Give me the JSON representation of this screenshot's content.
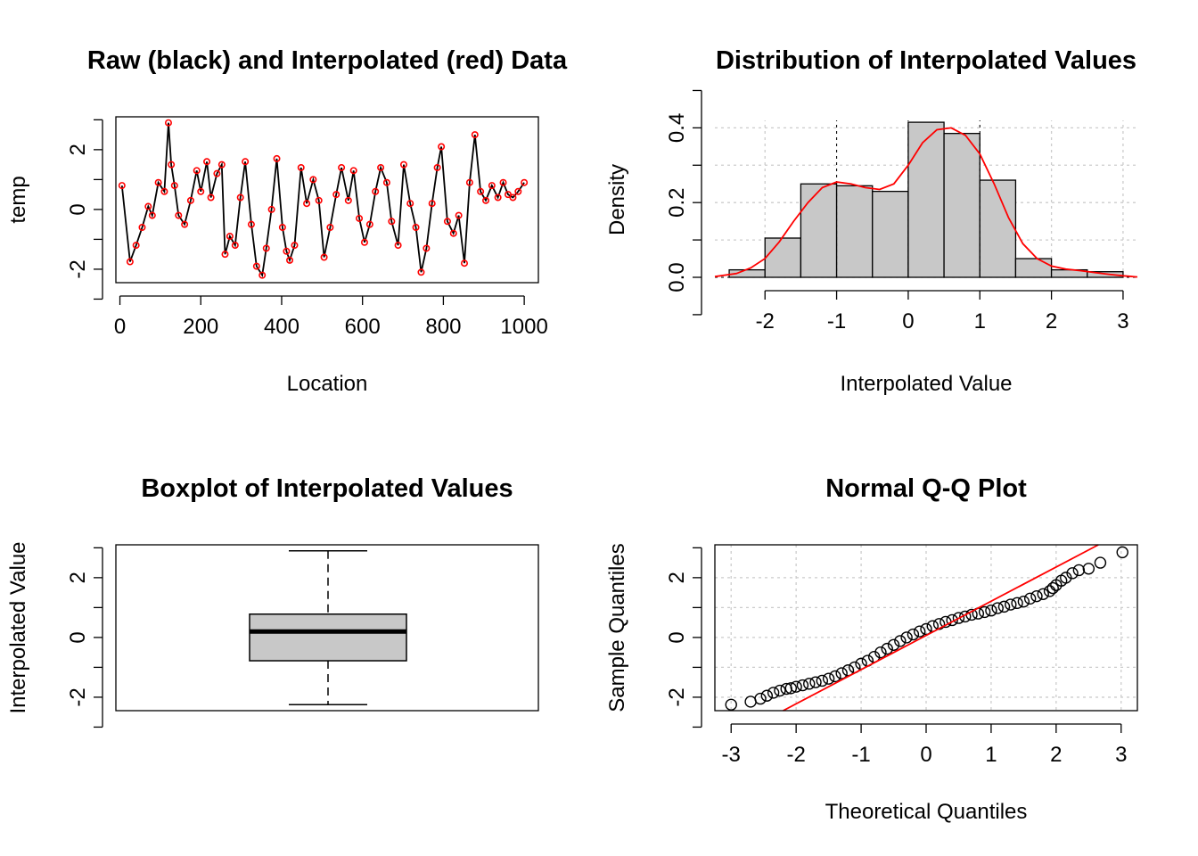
{
  "chart_data": [
    {
      "type": "line",
      "title": "Raw (black) and Interpolated (red) Data",
      "xlabel": "Location",
      "ylabel": "temp",
      "xlim": [
        -10,
        1035
      ],
      "ylim": [
        -2.45,
        3.1
      ],
      "xticks": [
        "0",
        "200",
        "400",
        "600",
        "800",
        "1000"
      ],
      "yticks": [
        "-2",
        "0",
        "2"
      ],
      "series": [
        {
          "name": "raw",
          "color": "#000000",
          "x": [
            5,
            25,
            40,
            55,
            70,
            80,
            95,
            110,
            120,
            127,
            135,
            145,
            160,
            175,
            190,
            200,
            215,
            225,
            240,
            252,
            260,
            272,
            285,
            298,
            310,
            325,
            338,
            352,
            362,
            375,
            388,
            402,
            412,
            420,
            432,
            448,
            462,
            478,
            492,
            505,
            520,
            535,
            548,
            565,
            578,
            592,
            605,
            618,
            632,
            645,
            660,
            672,
            688,
            702,
            718,
            732,
            745,
            758,
            772,
            785,
            795,
            810,
            825,
            838,
            852,
            865,
            878,
            892,
            905,
            920,
            935,
            948,
            960,
            972,
            985,
            1000
          ],
          "y": [
            0.8,
            -1.75,
            -1.2,
            -0.6,
            0.1,
            -0.2,
            0.9,
            0.6,
            2.9,
            1.5,
            0.8,
            -0.2,
            -0.5,
            0.3,
            1.3,
            0.6,
            1.6,
            0.4,
            1.2,
            1.5,
            -1.5,
            -0.9,
            -1.2,
            0.4,
            1.6,
            -0.5,
            -1.9,
            -2.2,
            -1.3,
            0.0,
            1.7,
            -0.6,
            -1.4,
            -1.7,
            -1.2,
            1.4,
            0.2,
            1.0,
            0.3,
            -1.6,
            -0.6,
            0.5,
            1.4,
            0.3,
            1.3,
            -0.3,
            -1.1,
            -0.5,
            0.6,
            1.4,
            0.9,
            -0.4,
            -1.2,
            1.5,
            0.2,
            -0.6,
            -2.1,
            -1.3,
            0.2,
            1.4,
            2.1,
            -0.4,
            -0.8,
            -0.2,
            -1.8,
            0.9,
            2.5,
            0.6,
            0.3,
            0.8,
            0.4,
            0.9,
            0.5,
            0.4,
            0.6,
            0.9
          ]
        },
        {
          "name": "interpolated",
          "color": "#ff0000",
          "x": [
            5,
            25,
            40,
            55,
            70,
            80,
            95,
            110,
            120,
            127,
            135,
            145,
            160,
            175,
            190,
            200,
            215,
            225,
            240,
            252,
            260,
            272,
            285,
            298,
            310,
            325,
            338,
            352,
            362,
            375,
            388,
            402,
            412,
            420,
            432,
            448,
            462,
            478,
            492,
            505,
            520,
            535,
            548,
            565,
            578,
            592,
            605,
            618,
            632,
            645,
            660,
            672,
            688,
            702,
            718,
            732,
            745,
            758,
            772,
            785,
            795,
            810,
            825,
            838,
            852,
            865,
            878,
            892,
            905,
            920,
            935,
            948,
            960,
            972,
            985,
            1000
          ],
          "y": [
            0.8,
            -1.75,
            -1.2,
            -0.6,
            0.1,
            -0.2,
            0.9,
            0.6,
            2.9,
            1.5,
            0.8,
            -0.2,
            -0.5,
            0.3,
            1.3,
            0.6,
            1.6,
            0.4,
            1.2,
            1.5,
            -1.5,
            -0.9,
            -1.2,
            0.4,
            1.6,
            -0.5,
            -1.9,
            -2.2,
            -1.3,
            0.0,
            1.7,
            -0.6,
            -1.4,
            -1.7,
            -1.2,
            1.4,
            0.2,
            1.0,
            0.3,
            -1.6,
            -0.6,
            0.5,
            1.4,
            0.3,
            1.3,
            -0.3,
            -1.1,
            -0.5,
            0.6,
            1.4,
            0.9,
            -0.4,
            -1.2,
            1.5,
            0.2,
            -0.6,
            -2.1,
            -1.3,
            0.2,
            1.4,
            2.1,
            -0.4,
            -0.8,
            -0.2,
            -1.8,
            0.9,
            2.5,
            0.6,
            0.3,
            0.8,
            0.4,
            0.9,
            0.5,
            0.4,
            0.6,
            0.9
          ]
        }
      ]
    },
    {
      "type": "bar",
      "title": "Distribution of Interpolated Values",
      "xlabel": "Interpolated Value",
      "ylabel": "Density",
      "xlim": [
        -2.7,
        3.2
      ],
      "ylim": [
        0,
        0.42
      ],
      "xticks": [
        "-2",
        "-1",
        "0",
        "1",
        "2",
        "3"
      ],
      "yticks": [
        "0.0",
        "0.2",
        "0.4"
      ],
      "grid": true,
      "bins": [
        [
          -2.5,
          -2.0
        ],
        [
          -2.0,
          -1.5
        ],
        [
          -1.5,
          -1.0
        ],
        [
          -1.0,
          -0.5
        ],
        [
          -0.5,
          0.0
        ],
        [
          0.0,
          0.5
        ],
        [
          0.5,
          1.0
        ],
        [
          1.0,
          1.5
        ],
        [
          1.5,
          2.0
        ],
        [
          2.0,
          2.5
        ],
        [
          2.5,
          3.0
        ]
      ],
      "values": [
        0.02,
        0.105,
        0.25,
        0.245,
        0.23,
        0.415,
        0.385,
        0.26,
        0.05,
        0.02,
        0.015
      ],
      "bar_color": "#c8c8c8",
      "density_curve": {
        "color": "#ff0000",
        "x": [
          -2.7,
          -2.4,
          -2.2,
          -2.0,
          -1.8,
          -1.6,
          -1.4,
          -1.2,
          -1.0,
          -0.8,
          -0.6,
          -0.4,
          -0.2,
          0.0,
          0.2,
          0.4,
          0.6,
          0.8,
          1.0,
          1.2,
          1.4,
          1.6,
          1.8,
          2.0,
          2.2,
          2.4,
          2.6,
          2.8,
          3.0,
          3.2
        ],
        "y": [
          0.002,
          0.01,
          0.025,
          0.05,
          0.095,
          0.15,
          0.2,
          0.24,
          0.255,
          0.25,
          0.24,
          0.235,
          0.25,
          0.3,
          0.36,
          0.395,
          0.4,
          0.38,
          0.33,
          0.25,
          0.16,
          0.09,
          0.05,
          0.03,
          0.022,
          0.018,
          0.013,
          0.008,
          0.004,
          0.001
        ]
      }
    },
    {
      "type": "boxplot",
      "title": "Boxplot of Interpolated Values",
      "ylabel": "Interpolated Value",
      "ylim": [
        -2.45,
        3.1
      ],
      "yticks": [
        "-2",
        "0",
        "2"
      ],
      "min": -2.25,
      "q1": -0.78,
      "median": 0.2,
      "q3": 0.78,
      "max": 2.9,
      "box_color": "#c8c8c8"
    },
    {
      "type": "scatter",
      "title": "Normal Q-Q Plot",
      "xlabel": "Theoretical Quantiles",
      "ylabel": "Sample Quantiles",
      "xlim": [
        -3.25,
        3.25
      ],
      "ylim": [
        -2.45,
        3.1
      ],
      "xticks": [
        "-3",
        "-2",
        "-1",
        "0",
        "1",
        "2",
        "3"
      ],
      "yticks": [
        "-2",
        "0",
        "2"
      ],
      "grid": true,
      "x": [
        -3.0,
        -2.7,
        -2.55,
        -2.45,
        -2.35,
        -2.25,
        -2.15,
        -2.08,
        -2.0,
        -1.9,
        -1.8,
        -1.7,
        -1.6,
        -1.5,
        -1.4,
        -1.3,
        -1.2,
        -1.1,
        -1.0,
        -0.9,
        -0.8,
        -0.7,
        -0.6,
        -0.5,
        -0.4,
        -0.3,
        -0.2,
        -0.1,
        0.0,
        0.1,
        0.2,
        0.3,
        0.4,
        0.5,
        0.6,
        0.7,
        0.8,
        0.9,
        1.0,
        1.1,
        1.2,
        1.3,
        1.4,
        1.5,
        1.6,
        1.7,
        1.8,
        1.9,
        1.95,
        2.0,
        2.08,
        2.15,
        2.25,
        2.35,
        2.5,
        2.68,
        3.02
      ],
      "y": [
        -2.25,
        -2.15,
        -2.05,
        -1.95,
        -1.85,
        -1.78,
        -1.72,
        -1.7,
        -1.65,
        -1.6,
        -1.55,
        -1.5,
        -1.45,
        -1.38,
        -1.3,
        -1.2,
        -1.1,
        -1.0,
        -0.88,
        -0.78,
        -0.65,
        -0.5,
        -0.38,
        -0.25,
        -0.12,
        0.0,
        0.1,
        0.2,
        0.28,
        0.38,
        0.45,
        0.52,
        0.58,
        0.65,
        0.7,
        0.76,
        0.8,
        0.85,
        0.9,
        0.98,
        1.03,
        1.1,
        1.15,
        1.2,
        1.3,
        1.38,
        1.45,
        1.55,
        1.65,
        1.75,
        1.9,
        2.0,
        2.15,
        2.25,
        2.3,
        2.5,
        2.85
      ],
      "qq_line": {
        "color": "#ff0000",
        "x": [
          -2.2,
          2.65
        ],
        "y": [
          -2.45,
          3.1
        ]
      }
    }
  ]
}
